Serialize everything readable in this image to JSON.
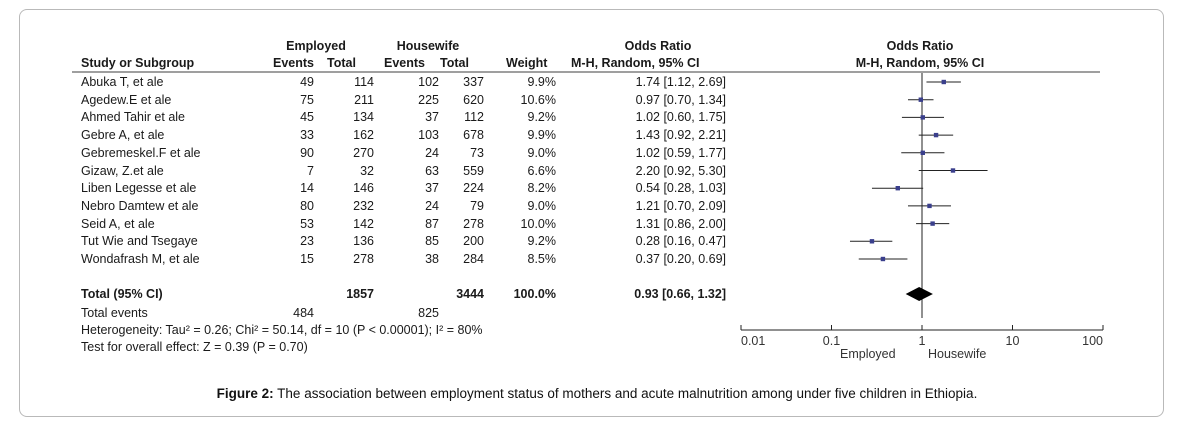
{
  "chart_data": {
    "type": "forest",
    "headers": {
      "group1": "Employed",
      "group2": "Housewife",
      "study": "Study or Subgroup",
      "events": "Events",
      "total": "Total",
      "weight": "Weight",
      "or_title": "Odds Ratio",
      "or_method": "M-H, Random, 95% CI",
      "plot_title": "Odds Ratio",
      "plot_method": "M-H, Random, 95% CI"
    },
    "studies": [
      {
        "name": "Abuka T, et ale",
        "e1": "49",
        "t1": "114",
        "e2": "102",
        "t2": "337",
        "weight": "9.9%",
        "ci_text": "1.74 [1.12, 2.69]",
        "or": 1.74,
        "lo": 1.12,
        "hi": 2.69
      },
      {
        "name": "Agedew.E et ale",
        "e1": "75",
        "t1": "211",
        "e2": "225",
        "t2": "620",
        "weight": "10.6%",
        "ci_text": "0.97 [0.70, 1.34]",
        "or": 0.97,
        "lo": 0.7,
        "hi": 1.34
      },
      {
        "name": "Ahmed  Tahir et ale",
        "e1": "45",
        "t1": "134",
        "e2": "37",
        "t2": "112",
        "weight": "9.2%",
        "ci_text": "1.02 [0.60, 1.75]",
        "or": 1.02,
        "lo": 0.6,
        "hi": 1.75
      },
      {
        "name": "Gebre A, et ale",
        "e1": "33",
        "t1": "162",
        "e2": "103",
        "t2": "678",
        "weight": "9.9%",
        "ci_text": "1.43 [0.92, 2.21]",
        "or": 1.43,
        "lo": 0.92,
        "hi": 2.21
      },
      {
        "name": "Gebremeskel.F et ale",
        "e1": "90",
        "t1": "270",
        "e2": "24",
        "t2": "73",
        "weight": "9.0%",
        "ci_text": "1.02 [0.59, 1.77]",
        "or": 1.02,
        "lo": 0.59,
        "hi": 1.77
      },
      {
        "name": "Gizaw, Z.et ale",
        "e1": "7",
        "t1": "32",
        "e2": "63",
        "t2": "559",
        "weight": "6.6%",
        "ci_text": "2.20 [0.92, 5.30]",
        "or": 2.2,
        "lo": 0.92,
        "hi": 5.3
      },
      {
        "name": "Liben Legesse  et ale",
        "e1": "14",
        "t1": "146",
        "e2": "37",
        "t2": "224",
        "weight": "8.2%",
        "ci_text": "0.54 [0.28, 1.03]",
        "or": 0.54,
        "lo": 0.28,
        "hi": 1.03
      },
      {
        "name": "Nebro  Damtew  et ale",
        "e1": "80",
        "t1": "232",
        "e2": "24",
        "t2": "79",
        "weight": "9.0%",
        "ci_text": "1.21 [0.70, 2.09]",
        "or": 1.21,
        "lo": 0.7,
        "hi": 2.09
      },
      {
        "name": "Seid A, et ale",
        "e1": "53",
        "t1": "142",
        "e2": "87",
        "t2": "278",
        "weight": "10.0%",
        "ci_text": "1.31 [0.86, 2.00]",
        "or": 1.31,
        "lo": 0.86,
        "hi": 2.0
      },
      {
        "name": "Tut Wie and Tsegaye",
        "e1": "23",
        "t1": "136",
        "e2": "85",
        "t2": "200",
        "weight": "9.2%",
        "ci_text": "0.28 [0.16, 0.47]",
        "or": 0.28,
        "lo": 0.16,
        "hi": 0.47
      },
      {
        "name": "Wondafrash M, et ale",
        "e1": "15",
        "t1": "278",
        "e2": "38",
        "t2": "284",
        "weight": "8.5%",
        "ci_text": "0.37 [0.20, 0.69]",
        "or": 0.37,
        "lo": 0.2,
        "hi": 0.69
      }
    ],
    "total": {
      "label": "Total (95% CI)",
      "t1": "1857",
      "t2": "3444",
      "weight": "100.0%",
      "ci_text": "0.93 [0.66, 1.32]",
      "or": 0.93,
      "lo": 0.66,
      "hi": 1.32
    },
    "total_events": {
      "label": "Total events",
      "e1": "484",
      "e2": "825"
    },
    "heterogeneity": "Heterogeneity: Tau² = 0.26; Chi² = 50.14, df = 10 (P < 0.00001); I² = 80%",
    "overall_effect": "Test for overall effect: Z = 0.39 (P = 0.70)",
    "axis": {
      "scale": "log",
      "ticks": [
        0.01,
        0.1,
        1,
        10,
        100
      ],
      "tick_labels": [
        "0.01",
        "0.1",
        "1",
        "10",
        "100"
      ]
    },
    "favours_left": "Employed",
    "favours_right": "Housewife",
    "colors": {
      "marker": "#3a3f8c",
      "line": "#222222",
      "diamond": "#000000"
    }
  },
  "caption": {
    "label": "Figure 2:",
    "text": " The association between employment status of mothers and acute malnutrition among under five children in Ethiopia."
  }
}
